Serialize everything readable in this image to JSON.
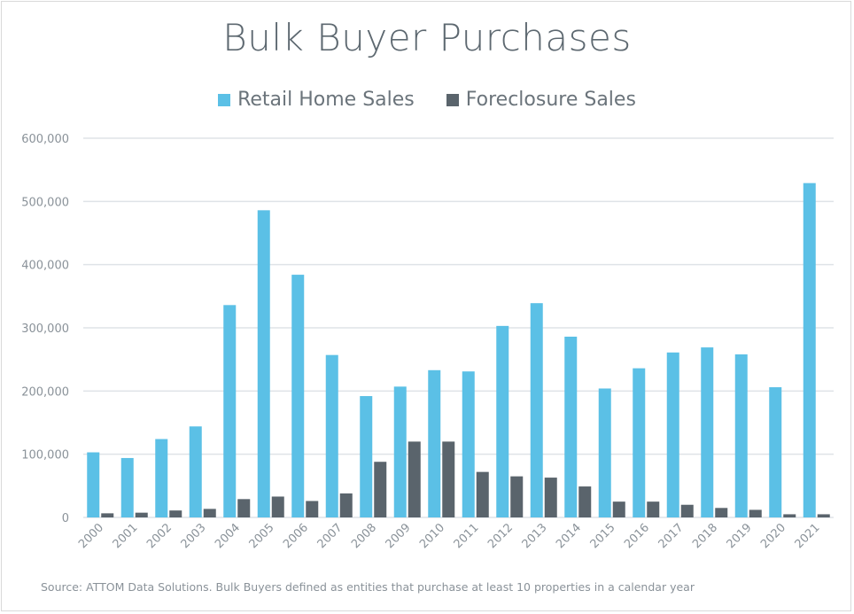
{
  "chart_data": {
    "type": "bar",
    "title": "Bulk Buyer Purchases",
    "categories": [
      "2000",
      "2001",
      "2002",
      "2003",
      "2004",
      "2005",
      "2006",
      "2007",
      "2008",
      "2009",
      "2010",
      "2011",
      "2012",
      "2013",
      "2014",
      "2015",
      "2016",
      "2017",
      "2018",
      "2019",
      "2020",
      "2021"
    ],
    "series": [
      {
        "name": "Retail Home Sales",
        "color": "#5bc0e6",
        "values": [
          103000,
          94000,
          124000,
          144000,
          336000,
          486000,
          384000,
          257000,
          192000,
          207000,
          233000,
          231000,
          303000,
          339000,
          286000,
          204000,
          236000,
          261000,
          269000,
          258000,
          206000,
          529000
        ]
      },
      {
        "name": "Foreclosure Sales",
        "color": "#5a646c",
        "values": [
          6500,
          7500,
          11000,
          13500,
          29000,
          33000,
          26000,
          38000,
          88000,
          120000,
          120000,
          72000,
          65000,
          63000,
          49000,
          25000,
          25000,
          20000,
          15000,
          12000,
          5000,
          5000
        ]
      }
    ],
    "yticks": [
      "0",
      "100,000",
      "200,000",
      "300,000",
      "400,000",
      "500,000",
      "600,000"
    ],
    "ylim": [
      0,
      600000
    ],
    "grid": true,
    "legend": "top-center",
    "source": "Source: ATTOM Data Solutions. Bulk Buyers defined as entities that purchase at least 10 properties in a calendar year"
  }
}
